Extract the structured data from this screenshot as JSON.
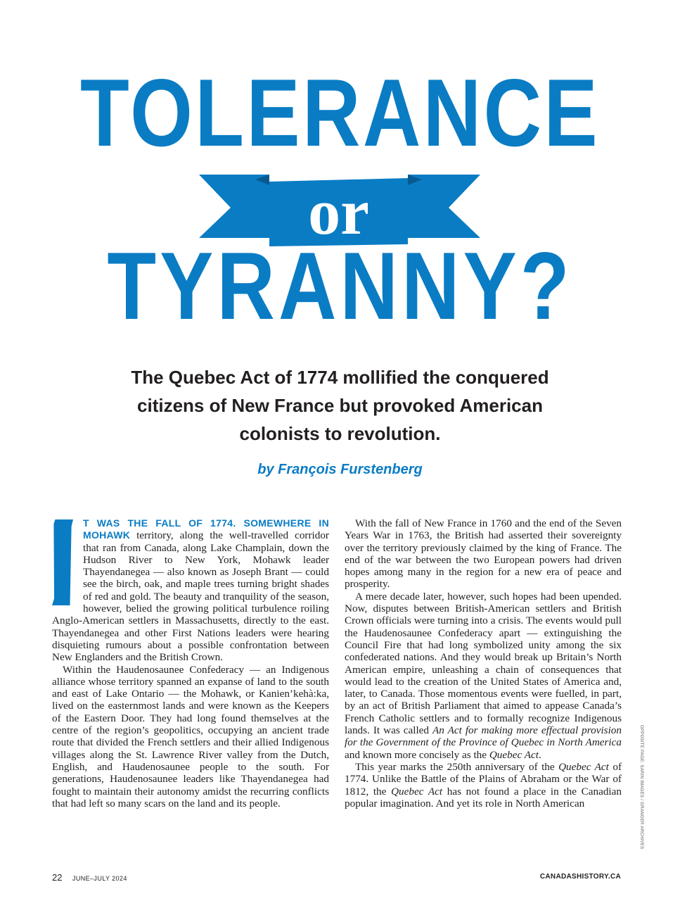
{
  "title": {
    "line1": "TOLERANCE",
    "banner_word": "or",
    "line2": "TYRANNY?"
  },
  "subtitle": "The Quebec Act of 1774 mollified the conquered citizens of New France but provoked American colonists to revolution.",
  "byline": "by François Furstenberg",
  "colors": {
    "accent": "#0a7cc4",
    "text": "#231f20"
  },
  "article": {
    "drop_cap": "I",
    "lead_in": "T WAS THE FALL OF 1774. SOMEWHERE IN MOHAWK",
    "p1_rest": " territory, along the well-travelled corridor that ran from Canada, along Lake Champlain, down the Hudson River to New York, Mohawk leader Thayendanegea — also known as Joseph Brant — could see the birch, oak, and maple trees turning bright shades of red and gold. The beauty and tranquility of the season, however, belied the growing political turbulence roiling Anglo-American settlers in Massachusetts, directly to the east. Thayendanegea and other First Nations leaders were hearing disquieting rumours about a possible confrontation between New Englanders and the British Crown.",
    "p2": "Within the Haudenosaunee Confederacy — an Indigenous alliance whose territory spanned an expanse of land to the south and east of Lake Ontario — the Mohawk, or Kanien’kehà:ka, lived on the easternmost lands and were known as the Keepers of the Eastern Door. They had long found themselves at the centre of the region’s geopolitics, occupying an ancient trade route that divided the French settlers and their allied Indigenous villages along the St. Lawrence River valley from the Dutch, English, and Haudenosaunee people to the south. For generations, Haudenosaunee leaders like Thayendanegea had fought to maintain their autonomy amidst the recurring conflicts that had left so many scars on the land and its people.",
    "p3": "With the fall of New France in 1760 and the end of the Seven Years War in 1763, the British had asserted their sovereignty over the territory previously claimed by the king of France. The end of the war between the two European powers had driven hopes among many in the region for a new era of peace and prosperity.",
    "p4_a": "A mere decade later, however, such hopes had been upended. Now, disputes between British-American settlers and British Crown officials were turning into a crisis. The events would pull the Haudenosaunee Confederacy apart — extinguishing the Council Fire that had long symbolized unity among the six confederated nations. And they would break up Britain’s North American empire, unleashing a chain of consequences that would lead to the creation of the United States of America and, later, to Canada. Those momentous events were fuelled, in part, by an act of British Parliament that aimed to appease Canada’s French Catholic settlers and to formally recognize Indigenous lands. It was called ",
    "p4_italic1": "An Act for making more effectual provision for the Government of the Province of Quebec in North America",
    "p4_b": " and known more concisely as the ",
    "p4_italic2": "Quebec Act",
    "p4_c": ".",
    "p5_a": "This year marks the 250th anniversary of the ",
    "p5_italic1": "Quebec Act",
    "p5_b": " of 1774. Unlike the Battle of the Plains of Abraham or the War of 1812, the ",
    "p5_italic2": "Quebec Act",
    "p5_c": " has not found a place in the Canadian popular imagination. And yet its role in North American"
  },
  "photo_credit": "OPPOSITE PAGE: SARIN IMAGES / GRANGER ARCHIVES",
  "footer": {
    "page_number": "22",
    "issue": "JUNE–JULY 2024",
    "website": "CANADASHISTORY.CA"
  }
}
